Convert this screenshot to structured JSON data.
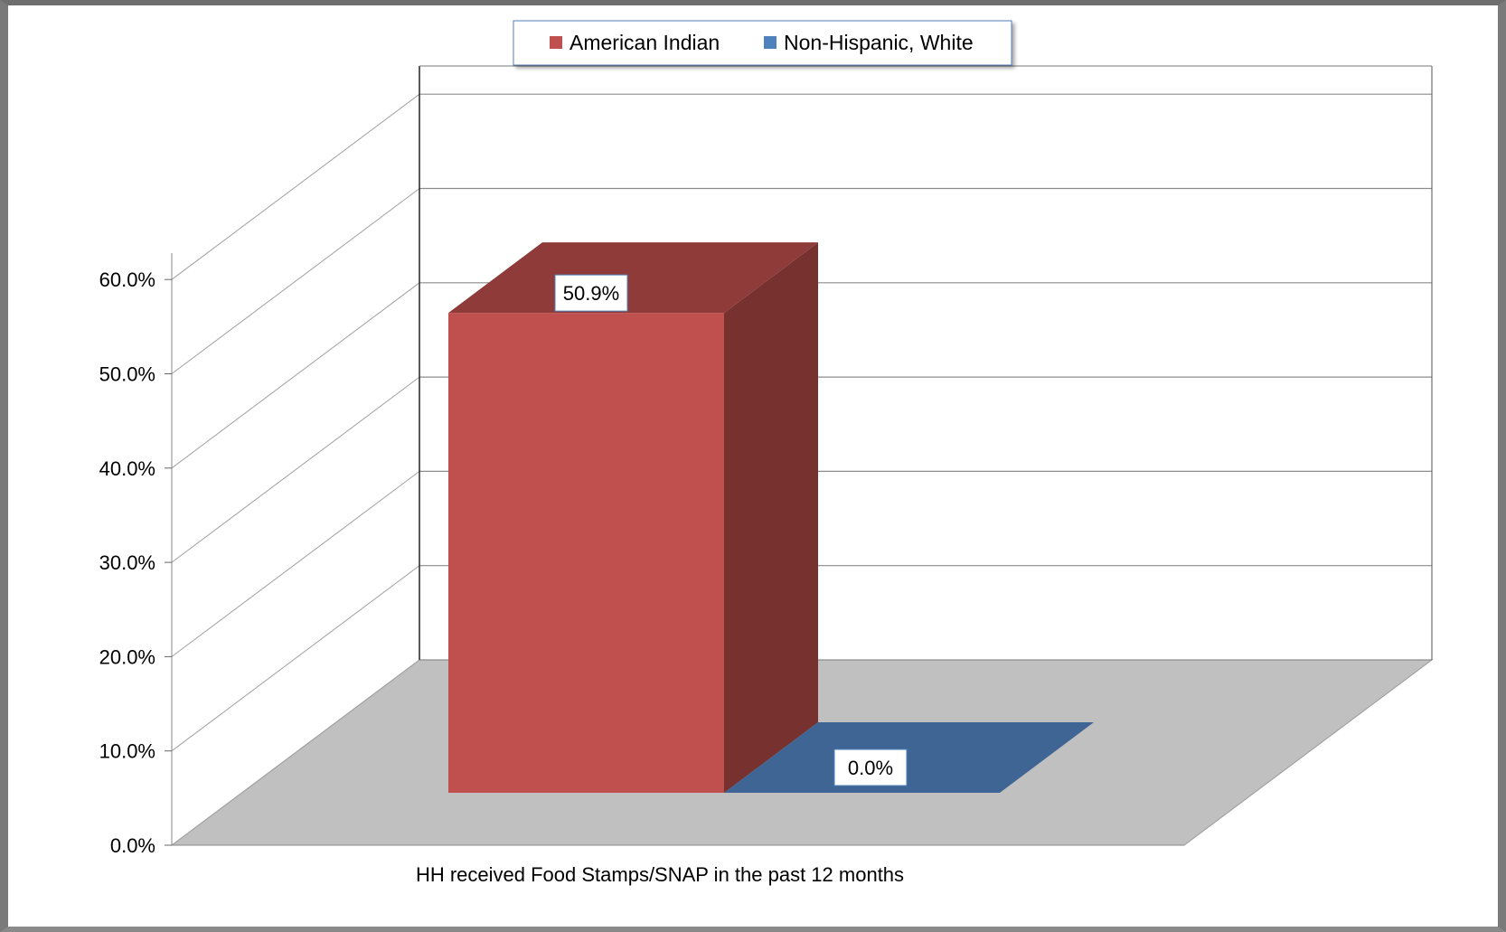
{
  "chart_data": {
    "type": "bar",
    "style": "3d-clustered-column",
    "categories": [
      "HH received Food Stamps/SNAP in the past 12 months"
    ],
    "series": [
      {
        "name": "American Indian",
        "values": [
          50.9
        ],
        "color": "#c0504d",
        "data_label": "50.9%"
      },
      {
        "name": "Non-Hispanic, White",
        "values": [
          0.0
        ],
        "color": "#4f81bd",
        "data_label": "0.0%"
      }
    ],
    "y_ticks": [
      "0.0%",
      "10.0%",
      "20.0%",
      "30.0%",
      "40.0%",
      "50.0%",
      "60.0%"
    ],
    "ylim": [
      0,
      60
    ],
    "grid": true,
    "legend_position": "top-center",
    "floor_color": "#c0c0c0"
  }
}
